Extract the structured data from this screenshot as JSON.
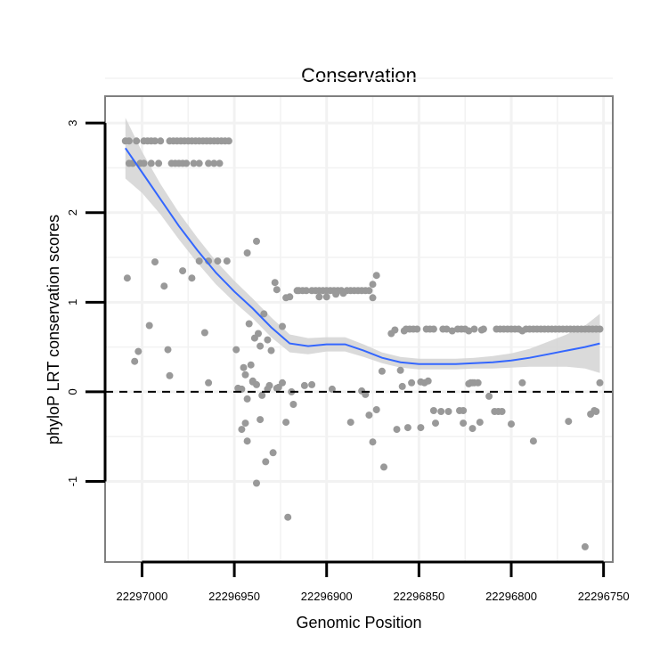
{
  "chart_data": {
    "type": "scatter",
    "title": "Conservation",
    "xlabel": "Genomic Position",
    "ylabel": "phyloP LRT conservation scores",
    "x_reversed": true,
    "xlim": [
      22297020,
      22296745
    ],
    "ylim": [
      -1.9,
      3.3
    ],
    "x_ticks": [
      22297000,
      22296950,
      22296900,
      22296850,
      22296800,
      22296750
    ],
    "x_tick_labels": [
      "22297000",
      "22296950",
      "22296900",
      "22296850",
      "22296800",
      "22296750"
    ],
    "y_ticks": [
      -1,
      0,
      1,
      2,
      3
    ],
    "y_tick_labels": [
      "-1",
      "0",
      "1",
      "2",
      "3"
    ],
    "reference_line": {
      "y": 0,
      "style": "dashed"
    },
    "colors": {
      "points": "#999999",
      "smooth": "#3366ff",
      "ribbon": "#d3d3d3",
      "frame": "#7f7f7f",
      "grid": "#f2f2f2"
    },
    "points": [
      [
        22297009,
        2.8
      ],
      [
        22297007,
        2.8
      ],
      [
        22297003,
        2.8
      ],
      [
        22296999,
        2.8
      ],
      [
        22296997,
        2.8
      ],
      [
        22296995,
        2.8
      ],
      [
        22296993,
        2.8
      ],
      [
        22296990,
        2.8
      ],
      [
        22296985,
        2.8
      ],
      [
        22296983,
        2.8
      ],
      [
        22296981,
        2.8
      ],
      [
        22296979,
        2.8
      ],
      [
        22296977,
        2.8
      ],
      [
        22296975,
        2.8
      ],
      [
        22296973,
        2.8
      ],
      [
        22296971,
        2.8
      ],
      [
        22296969,
        2.8
      ],
      [
        22296967,
        2.8
      ],
      [
        22296965,
        2.8
      ],
      [
        22296963,
        2.8
      ],
      [
        22296961,
        2.8
      ],
      [
        22296959,
        2.8
      ],
      [
        22296957,
        2.8
      ],
      [
        22296955,
        2.8
      ],
      [
        22296953,
        2.8
      ],
      [
        22297007,
        2.55
      ],
      [
        22297005,
        2.55
      ],
      [
        22297001,
        2.55
      ],
      [
        22296999,
        2.55
      ],
      [
        22296995,
        2.55
      ],
      [
        22296991,
        2.55
      ],
      [
        22296984,
        2.55
      ],
      [
        22296982,
        2.55
      ],
      [
        22296980,
        2.55
      ],
      [
        22296978,
        2.55
      ],
      [
        22296976,
        2.55
      ],
      [
        22296972,
        2.55
      ],
      [
        22296969,
        2.55
      ],
      [
        22296964,
        2.55
      ],
      [
        22296961,
        2.55
      ],
      [
        22296958,
        2.55
      ],
      [
        22297008,
        1.27
      ],
      [
        22296978,
        1.35
      ],
      [
        22296973,
        1.27
      ],
      [
        22296993,
        1.45
      ],
      [
        22296988,
        1.18
      ],
      [
        22296969,
        1.46
      ],
      [
        22296964,
        1.46
      ],
      [
        22296959,
        1.46
      ],
      [
        22296954,
        1.46
      ],
      [
        22297002,
        0.45
      ],
      [
        22297004,
        0.34
      ],
      [
        22296996,
        0.74
      ],
      [
        22296986,
        0.47
      ],
      [
        22296985,
        0.18
      ],
      [
        22296966,
        0.66
      ],
      [
        22296964,
        0.1
      ],
      [
        22296943,
        1.55
      ],
      [
        22296938,
        1.68
      ],
      [
        22296949,
        0.47
      ],
      [
        22296942,
        0.76
      ],
      [
        22296939,
        0.6
      ],
      [
        22296937,
        0.65
      ],
      [
        22296936,
        0.51
      ],
      [
        22296934,
        0.87
      ],
      [
        22296932,
        0.58
      ],
      [
        22296930,
        0.46
      ],
      [
        22296924,
        0.73
      ],
      [
        22296945,
        0.27
      ],
      [
        22296944,
        0.19
      ],
      [
        22296941,
        0.3
      ],
      [
        22296940,
        0.11
      ],
      [
        22296948,
        0.04
      ],
      [
        22296946,
        0.03
      ],
      [
        22296943,
        -0.08
      ],
      [
        22296940,
        0.12
      ],
      [
        22296938,
        0.08
      ],
      [
        22296935,
        -0.04
      ],
      [
        22296932,
        0.03
      ],
      [
        22296931,
        0.07
      ],
      [
        22296927,
        0.04
      ],
      [
        22296926,
        0.05
      ],
      [
        22296924,
        0.1
      ],
      [
        22296946,
        -0.42
      ],
      [
        22296943,
        -0.55
      ],
      [
        22296944,
        -0.35
      ],
      [
        22296936,
        -0.31
      ],
      [
        22296929,
        -0.68
      ],
      [
        22296933,
        -0.78
      ],
      [
        22296938,
        -1.02
      ],
      [
        22296922,
        -0.34
      ],
      [
        22296918,
        -0.14
      ],
      [
        22296919,
        0.0
      ],
      [
        22296921,
        -1.4
      ],
      [
        22296928,
        1.22
      ],
      [
        22296927,
        1.14
      ],
      [
        22296922,
        1.05
      ],
      [
        22296920,
        1.06
      ],
      [
        22296916,
        1.13
      ],
      [
        22296915,
        1.13
      ],
      [
        22296913,
        1.13
      ],
      [
        22296911,
        1.13
      ],
      [
        22296908,
        1.13
      ],
      [
        22296906,
        1.13
      ],
      [
        22296904,
        1.13
      ],
      [
        22296902,
        1.13
      ],
      [
        22296900,
        1.13
      ],
      [
        22296898,
        1.13
      ],
      [
        22296896,
        1.13
      ],
      [
        22296894,
        1.13
      ],
      [
        22296892,
        1.13
      ],
      [
        22296889,
        1.13
      ],
      [
        22296887,
        1.13
      ],
      [
        22296885,
        1.13
      ],
      [
        22296883,
        1.13
      ],
      [
        22296881,
        1.13
      ],
      [
        22296879,
        1.13
      ],
      [
        22296877,
        1.13
      ],
      [
        22296875,
        1.2
      ],
      [
        22296873,
        1.3
      ],
      [
        22296875,
        1.05
      ],
      [
        22296904,
        1.06
      ],
      [
        22296900,
        1.06
      ],
      [
        22296895,
        1.09
      ],
      [
        22296891,
        1.1
      ],
      [
        22296908,
        0.08
      ],
      [
        22296912,
        0.07
      ],
      [
        22296897,
        0.03
      ],
      [
        22296879,
        -0.03
      ],
      [
        22296887,
        -0.34
      ],
      [
        22296881,
        0.01
      ],
      [
        22296877,
        -0.26
      ],
      [
        22296875,
        -0.56
      ],
      [
        22296873,
        -0.2
      ],
      [
        22296869,
        -0.84
      ],
      [
        22296870,
        0.23
      ],
      [
        22296860,
        0.24
      ],
      [
        22296859,
        0.06
      ],
      [
        22296854,
        0.1
      ],
      [
        22296856,
        -0.4
      ],
      [
        22296862,
        -0.42
      ],
      [
        22296849,
        0.11
      ],
      [
        22296847,
        0.1
      ],
      [
        22296845,
        0.12
      ],
      [
        22296849,
        -0.4
      ],
      [
        22296842,
        -0.21
      ],
      [
        22296841,
        -0.35
      ],
      [
        22296838,
        -0.22
      ],
      [
        22296834,
        -0.22
      ],
      [
        22296828,
        -0.21
      ],
      [
        22296826,
        -0.21
      ],
      [
        22296826,
        -0.35
      ],
      [
        22296821,
        -0.41
      ],
      [
        22296817,
        -0.34
      ],
      [
        22296809,
        -0.22
      ],
      [
        22296807,
        -0.22
      ],
      [
        22296805,
        -0.22
      ],
      [
        22296800,
        -0.36
      ],
      [
        22296788,
        -0.55
      ],
      [
        22296769,
        -0.33
      ],
      [
        22296757,
        -0.25
      ],
      [
        22296755,
        -0.21
      ],
      [
        22296754,
        -0.22
      ],
      [
        22296752,
        0.1
      ],
      [
        22296823,
        0.09
      ],
      [
        22296822,
        0.1
      ],
      [
        22296821,
        0.1
      ],
      [
        22296820,
        0.1
      ],
      [
        22296818,
        0.1
      ],
      [
        22296794,
        0.1
      ],
      [
        22296812,
        -0.05
      ],
      [
        22296760,
        -1.73
      ],
      [
        22296865,
        0.65
      ],
      [
        22296863,
        0.69
      ],
      [
        22296858,
        0.68
      ],
      [
        22296857,
        0.7
      ],
      [
        22296855,
        0.7
      ],
      [
        22296853,
        0.7
      ],
      [
        22296851,
        0.7
      ],
      [
        22296846,
        0.7
      ],
      [
        22296844,
        0.7
      ],
      [
        22296842,
        0.7
      ],
      [
        22296837,
        0.7
      ],
      [
        22296835,
        0.7
      ],
      [
        22296832,
        0.68
      ],
      [
        22296829,
        0.7
      ],
      [
        22296827,
        0.7
      ],
      [
        22296825,
        0.7
      ],
      [
        22296823,
        0.68
      ],
      [
        22296820,
        0.7
      ],
      [
        22296816,
        0.69
      ],
      [
        22296815,
        0.7
      ],
      [
        22296808,
        0.7
      ],
      [
        22296806,
        0.7
      ],
      [
        22296804,
        0.7
      ],
      [
        22296802,
        0.7
      ],
      [
        22296800,
        0.7
      ],
      [
        22296798,
        0.7
      ],
      [
        22296796,
        0.7
      ],
      [
        22296794,
        0.68
      ],
      [
        22296792,
        0.7
      ],
      [
        22296790,
        0.7
      ],
      [
        22296788,
        0.7
      ],
      [
        22296786,
        0.7
      ],
      [
        22296784,
        0.7
      ],
      [
        22296782,
        0.7
      ],
      [
        22296780,
        0.7
      ],
      [
        22296778,
        0.7
      ],
      [
        22296776,
        0.7
      ],
      [
        22296774,
        0.7
      ],
      [
        22296772,
        0.7
      ],
      [
        22296770,
        0.7
      ],
      [
        22296768,
        0.7
      ],
      [
        22296766,
        0.7
      ],
      [
        22296764,
        0.7
      ],
      [
        22296762,
        0.7
      ],
      [
        22296760,
        0.7
      ],
      [
        22296758,
        0.7
      ],
      [
        22296756,
        0.7
      ],
      [
        22296754,
        0.7
      ],
      [
        22296752,
        0.7
      ]
    ],
    "smooth": {
      "x": [
        22297009,
        22297000,
        22296990,
        22296980,
        22296970,
        22296960,
        22296950,
        22296940,
        22296930,
        22296920,
        22296910,
        22296900,
        22296890,
        22296880,
        22296870,
        22296860,
        22296850,
        22296840,
        22296830,
        22296820,
        22296810,
        22296800,
        22296790,
        22296780,
        22296770,
        22296760,
        22296752
      ],
      "y": [
        2.72,
        2.45,
        2.15,
        1.85,
        1.58,
        1.33,
        1.12,
        0.93,
        0.72,
        0.54,
        0.51,
        0.53,
        0.53,
        0.46,
        0.38,
        0.33,
        0.31,
        0.31,
        0.31,
        0.32,
        0.33,
        0.35,
        0.38,
        0.42,
        0.46,
        0.5,
        0.54
      ],
      "lower": [
        2.38,
        2.22,
        1.98,
        1.7,
        1.44,
        1.2,
        1.0,
        0.82,
        0.61,
        0.44,
        0.42,
        0.45,
        0.45,
        0.39,
        0.32,
        0.27,
        0.25,
        0.25,
        0.25,
        0.26,
        0.26,
        0.27,
        0.28,
        0.28,
        0.28,
        0.26,
        0.21
      ],
      "upper": [
        3.06,
        2.68,
        2.32,
        2.0,
        1.72,
        1.46,
        1.24,
        1.04,
        0.83,
        0.64,
        0.6,
        0.61,
        0.61,
        0.53,
        0.44,
        0.39,
        0.37,
        0.37,
        0.37,
        0.38,
        0.4,
        0.43,
        0.48,
        0.56,
        0.64,
        0.74,
        0.87
      ]
    }
  }
}
